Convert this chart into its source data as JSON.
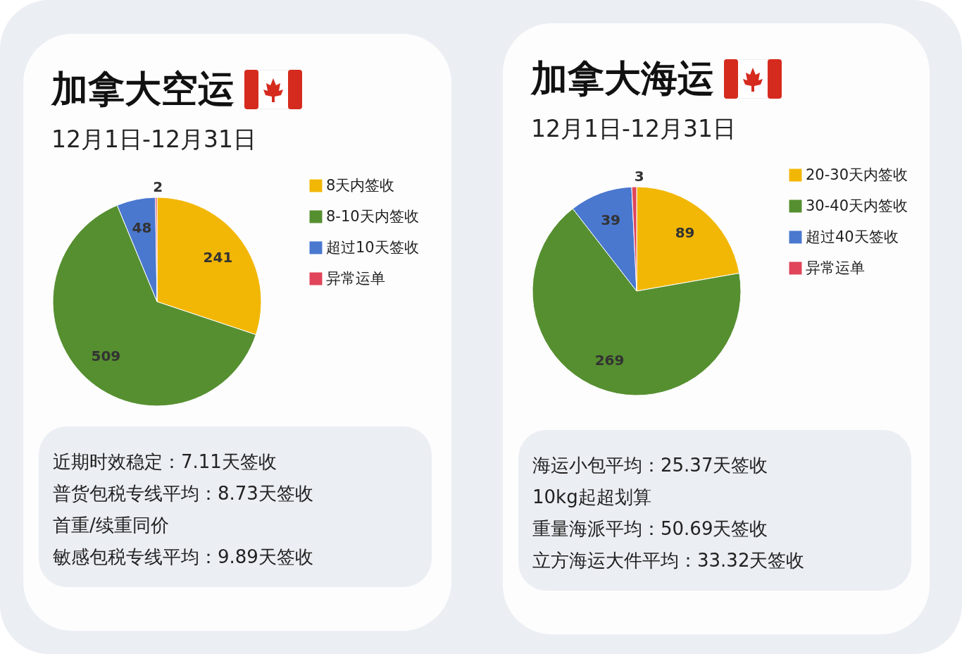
{
  "chart_data": [
    {
      "type": "pie",
      "title": "加拿大空运",
      "subtitle": "12月1日-12月31日",
      "categories": [
        "8天内签收",
        "8-10天内签收",
        "超过10天签收",
        "异常运单"
      ],
      "values": [
        241,
        509,
        48,
        2
      ],
      "colors": [
        "#f2b705",
        "#568f30",
        "#4a78cf",
        "#e0455a"
      ],
      "data_labels": true,
      "legend": "right",
      "annotations": [
        "近期时效稳定：7.11天签收",
        "普货包税专线平均：8.73天签收",
        "首重/续重同价",
        "敏感包税专线平均：9.89天签收"
      ]
    },
    {
      "type": "pie",
      "title": "加拿大海运",
      "subtitle": "12月1日-12月31日",
      "categories": [
        "20-30天内签收",
        "30-40天内签收",
        "超过40天签收",
        "异常运单"
      ],
      "values": [
        89,
        269,
        39,
        3
      ],
      "colors": [
        "#f2b705",
        "#568f30",
        "#4a78cf",
        "#e0455a"
      ],
      "data_labels": true,
      "legend": "right",
      "annotations": [
        "海运小包平均：25.37天签收",
        "10kg起超划算",
        "重量海派平均：50.69天签收",
        "立方海运大件平均：33.32天签收"
      ]
    }
  ]
}
